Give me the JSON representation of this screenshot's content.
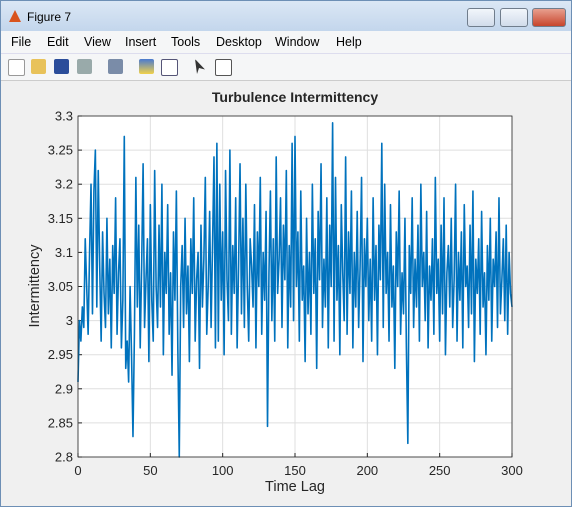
{
  "window": {
    "title": "Figure 7"
  },
  "menu": [
    "File",
    "Edit",
    "View",
    "Insert",
    "Tools",
    "Desktop",
    "Window",
    "Help"
  ],
  "chart_data": {
    "type": "line",
    "title": "Turbulence Intermittency",
    "x_label": "Time Lag",
    "y_label": "Intermittency",
    "color": "#0072bd",
    "grid": true,
    "xlim": [
      0,
      300
    ],
    "xticks": [
      0,
      50,
      100,
      150,
      200,
      250,
      300
    ],
    "ylim": [
      2.8,
      3.3
    ],
    "yticks": [
      2.8,
      2.85,
      2.9,
      2.95,
      3,
      3.05,
      3.1,
      3.15,
      3.2,
      3.25,
      3.3
    ],
    "x": [
      0,
      1,
      2,
      3,
      4,
      5,
      6,
      7,
      8,
      9,
      10,
      11,
      12,
      13,
      14,
      15,
      16,
      17,
      18,
      19,
      20,
      21,
      22,
      23,
      24,
      25,
      26,
      27,
      28,
      29,
      30,
      31,
      32,
      33,
      34,
      35,
      36,
      37,
      38,
      39,
      40,
      41,
      42,
      43,
      44,
      45,
      46,
      47,
      48,
      49,
      50,
      51,
      52,
      53,
      54,
      55,
      56,
      57,
      58,
      59,
      60,
      61,
      62,
      63,
      64,
      65,
      66,
      67,
      68,
      69,
      70,
      71,
      72,
      73,
      74,
      75,
      76,
      77,
      78,
      79,
      80,
      81,
      82,
      83,
      84,
      85,
      86,
      87,
      88,
      89,
      90,
      91,
      92,
      93,
      94,
      95,
      96,
      97,
      98,
      99,
      100,
      101,
      102,
      103,
      104,
      105,
      106,
      107,
      108,
      109,
      110,
      111,
      112,
      113,
      114,
      115,
      116,
      117,
      118,
      119,
      120,
      121,
      122,
      123,
      124,
      125,
      126,
      127,
      128,
      129,
      130,
      131,
      132,
      133,
      134,
      135,
      136,
      137,
      138,
      139,
      140,
      141,
      142,
      143,
      144,
      145,
      146,
      147,
      148,
      149,
      150,
      151,
      152,
      153,
      154,
      155,
      156,
      157,
      158,
      159,
      160,
      161,
      162,
      163,
      164,
      165,
      166,
      167,
      168,
      169,
      170,
      171,
      172,
      173,
      174,
      175,
      176,
      177,
      178,
      179,
      180,
      181,
      182,
      183,
      184,
      185,
      186,
      187,
      188,
      189,
      190,
      191,
      192,
      193,
      194,
      195,
      196,
      197,
      198,
      199,
      200,
      201,
      202,
      203,
      204,
      205,
      206,
      207,
      208,
      209,
      210,
      211,
      212,
      213,
      214,
      215,
      216,
      217,
      218,
      219,
      220,
      221,
      222,
      223,
      224,
      225,
      226,
      227,
      228,
      229,
      230,
      231,
      232,
      233,
      234,
      235,
      236,
      237,
      238,
      239,
      240,
      241,
      242,
      243,
      244,
      245,
      246,
      247,
      248,
      249,
      250,
      251,
      252,
      253,
      254,
      255,
      256,
      257,
      258,
      259,
      260,
      261,
      262,
      263,
      264,
      265,
      266,
      267,
      268,
      269,
      270,
      271,
      272,
      273,
      274,
      275,
      276,
      277,
      278,
      279,
      280,
      281,
      282,
      283,
      284,
      285,
      286,
      287,
      288,
      289,
      290,
      291,
      292,
      293,
      294,
      295,
      296,
      297,
      298,
      299,
      300
    ],
    "values": [
      2.91,
      3.0,
      2.97,
      3.02,
      2.99,
      3.12,
      3.05,
      2.98,
      3.1,
      3.2,
      3.01,
      3.19,
      3.25,
      3.02,
      3.22,
      3.08,
      2.97,
      3.13,
      3.04,
      2.99,
      3.15,
      3.01,
      3.09,
      2.96,
      3.11,
      3.04,
      3.18,
      2.98,
      3.07,
      3.12,
      2.96,
      3.03,
      3.27,
      2.93,
      2.97,
      2.91,
      3.05,
      2.95,
      2.83,
      2.98,
      3.21,
      3.02,
      3.14,
      2.96,
      3.08,
      3.23,
      2.99,
      3.06,
      3.12,
      2.94,
      3.17,
      3.03,
      2.97,
      3.22,
      3.05,
      2.99,
      3.14,
      3.02,
      3.2,
      2.95,
      3.1,
      3.04,
      3.17,
      2.98,
      3.07,
      2.92,
      3.13,
      3.03,
      3.19,
      2.96,
      2.8,
      3.05,
      3.11,
      2.99,
      3.15,
      3.01,
      3.08,
      2.94,
      3.12,
      3.04,
      3.18,
      2.97,
      3.06,
      3.1,
      2.93,
      3.14,
      3.02,
      3.09,
      3.21,
      2.98,
      3.05,
      3.16,
      2.99,
      3.11,
      3.24,
      2.96,
      3.26,
      2.97,
      3.2,
      3.03,
      3.13,
      2.95,
      3.22,
      3.06,
      3.0,
      3.25,
      2.98,
      3.11,
      3.04,
      3.18,
      2.96,
      3.08,
      3.23,
      3.01,
      3.15,
      2.99,
      3.2,
      3.05,
      2.97,
      3.12,
      3.08,
      3.02,
      3.17,
      2.96,
      3.13,
      3.05,
      3.21,
      2.98,
      3.1,
      3.03,
      3.16,
      2.845,
      3.07,
      3.19,
      3.0,
      3.12,
      2.97,
      3.24,
      3.04,
      3.09,
      3.18,
      2.99,
      3.14,
      3.06,
      3.22,
      2.96,
      3.11,
      3.02,
      3.26,
      3.0,
      3.27,
      3.05,
      3.13,
      2.97,
      3.19,
      3.03,
      3.08,
      2.94,
      3.15,
      3.01,
      3.1,
      2.98,
      3.2,
      3.04,
      3.12,
      2.93,
      3.16,
      3.06,
      3.23,
      2.99,
      3.09,
      3.02,
      3.18,
      2.96,
      3.14,
      3.05,
      3.29,
      2.97,
      3.21,
      3.03,
      3.11,
      2.95,
      3.17,
      3.07,
      3.0,
      3.24,
      2.98,
      3.13,
      3.04,
      3.19,
      2.96,
      3.1,
      3.02,
      3.16,
      2.99,
      3.08,
      3.21,
      2.94,
      3.12,
      3.05,
      3.15,
      3.0,
      3.09,
      2.97,
      3.18,
      3.03,
      3.11,
      2.95,
      3.14,
      3.06,
      3.26,
      2.99,
      3.2,
      3.04,
      3.1,
      2.97,
      3.17,
      3.02,
      3.08,
      2.93,
      3.13,
      3.05,
      3.19,
      2.98,
      3.07,
      3.01,
      3.15,
      2.96,
      2.82,
      3.11,
      3.04,
      3.18,
      2.99,
      3.09,
      3.02,
      3.14,
      2.97,
      3.2,
      3.05,
      3.1,
      3.0,
      3.16,
      2.96,
      3.08,
      3.03,
      3.12,
      2.98,
      3.21,
      3.04,
      3.09,
      2.97,
      3.14,
      3.01,
      3.18,
      2.95,
      3.07,
      3.11,
      3.02,
      3.15,
      2.99,
      3.06,
      3.2,
      2.97,
      3.1,
      3.03,
      3.13,
      2.96,
      3.17,
      3.05,
      3.08,
      2.99,
      3.14,
      3.01,
      3.19,
      2.94,
      3.09,
      3.04,
      3.12,
      2.98,
      3.16,
      3.02,
      3.07,
      2.95,
      3.11,
      3.03,
      3.15,
      2.97,
      3.09,
      3.05,
      3.13,
      2.99,
      3.18,
      3.01,
      3.06,
      3.12,
      3.0,
      3.14,
      2.98,
      3.1,
      3.04,
      3.02
    ]
  }
}
